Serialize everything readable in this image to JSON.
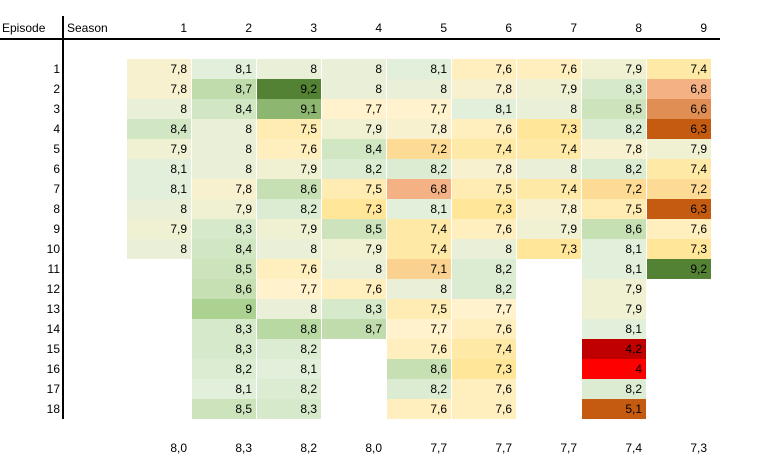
{
  "chart_data": {
    "type": "heatmap",
    "row_header": "Episode",
    "column_header": "Season",
    "seasons": [
      "1",
      "2",
      "3",
      "4",
      "5",
      "6",
      "7",
      "8",
      "9"
    ],
    "episodes": [
      "1",
      "2",
      "3",
      "4",
      "5",
      "6",
      "7",
      "8",
      "9",
      "10",
      "11",
      "12",
      "13",
      "14",
      "15",
      "16",
      "17",
      "18"
    ],
    "ratings": [
      [
        "7,8",
        "8,1",
        "8",
        "8",
        "8,1",
        "7,6",
        "7,6",
        "7,9",
        "7,4"
      ],
      [
        "7,8",
        "8,7",
        "9,2",
        "8",
        "8",
        "7,8",
        "7,9",
        "8,3",
        "6,8"
      ],
      [
        "8",
        "8,4",
        "9,1",
        "7,7",
        "7,7",
        "8,1",
        "8",
        "8,5",
        "6,6"
      ],
      [
        "8,4",
        "8",
        "7,5",
        "7,9",
        "7,8",
        "7,6",
        "7,3",
        "8,2",
        "6,3"
      ],
      [
        "7,9",
        "8",
        "7,6",
        "8,4",
        "7,2",
        "7,4",
        "7,4",
        "7,8",
        "7,9"
      ],
      [
        "8,1",
        "8",
        "7,9",
        "8,2",
        "8,2",
        "7,8",
        "8",
        "8,2",
        "7,4"
      ],
      [
        "8,1",
        "7,8",
        "8,6",
        "7,5",
        "6,8",
        "7,5",
        "7,4",
        "7,2",
        "7,2"
      ],
      [
        "8",
        "7,9",
        "8,2",
        "7,3",
        "8,1",
        "7,3",
        "7,8",
        "7,5",
        "6,3"
      ],
      [
        "7,9",
        "8,3",
        "7,9",
        "8,5",
        "7,4",
        "7,6",
        "7,9",
        "8,6",
        "7,6"
      ],
      [
        "8",
        "8,4",
        "8",
        "7,9",
        "7,4",
        "8",
        "7,3",
        "8,1",
        "7,3"
      ],
      [
        null,
        "8,5",
        "7,6",
        "8",
        "7,1",
        "8,2",
        null,
        "8,1",
        "9,2"
      ],
      [
        null,
        "8,6",
        "7,7",
        "7,6",
        "8",
        "8,2",
        null,
        "7,9",
        null
      ],
      [
        null,
        "9",
        "8",
        "8,3",
        "7,5",
        "7,7",
        null,
        "7,9",
        null
      ],
      [
        null,
        "8,3",
        "8,8",
        "8,7",
        "7,7",
        "7,6",
        null,
        "8,1",
        null
      ],
      [
        null,
        "8,3",
        "8,2",
        null,
        "7,6",
        "7,4",
        null,
        "4,2",
        null
      ],
      [
        null,
        "8,2",
        "8,1",
        null,
        "8,6",
        "7,3",
        null,
        "4",
        null
      ],
      [
        null,
        "8,1",
        "8,2",
        null,
        "8,2",
        "7,6",
        null,
        "8,2",
        null
      ],
      [
        null,
        "8,5",
        "8,3",
        null,
        "7,6",
        "7,6",
        null,
        "5,1",
        null
      ]
    ],
    "averages": [
      "8,0",
      "8,3",
      "8,2",
      "8,0",
      "7,7",
      "7,7",
      "7,7",
      "7,4",
      "7,3"
    ],
    "color_scale": {
      "low": "#ff0000",
      "mid": "#fff2cc",
      "high": "#548235"
    }
  }
}
